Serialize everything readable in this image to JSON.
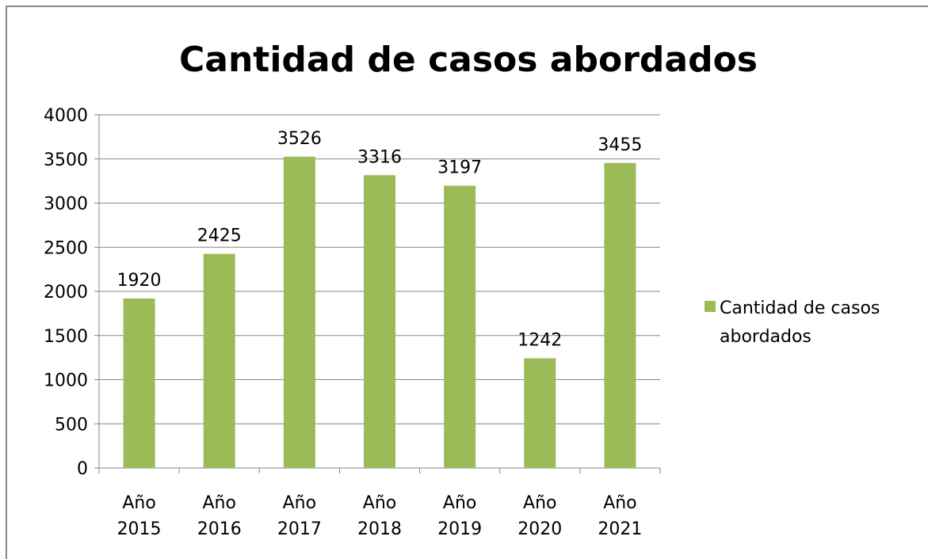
{
  "chart_data": {
    "type": "bar",
    "title": "Cantidad de casos abordados",
    "categories": [
      "Año 2015",
      "Año 2016",
      "Año 2017",
      "Año 2018",
      "Año 2019",
      "Año 2020",
      "Año 2021"
    ],
    "series": [
      {
        "name": "Cantidad de casos abordados",
        "color": "#9bbb59",
        "values": [
          1920,
          2425,
          3526,
          3316,
          3197,
          1242,
          3455
        ]
      }
    ],
    "ylim": [
      0,
      4000
    ],
    "yticks": [
      0,
      500,
      1000,
      1500,
      2000,
      2500,
      3000,
      3500,
      4000
    ],
    "grid": true,
    "legend": "right"
  }
}
